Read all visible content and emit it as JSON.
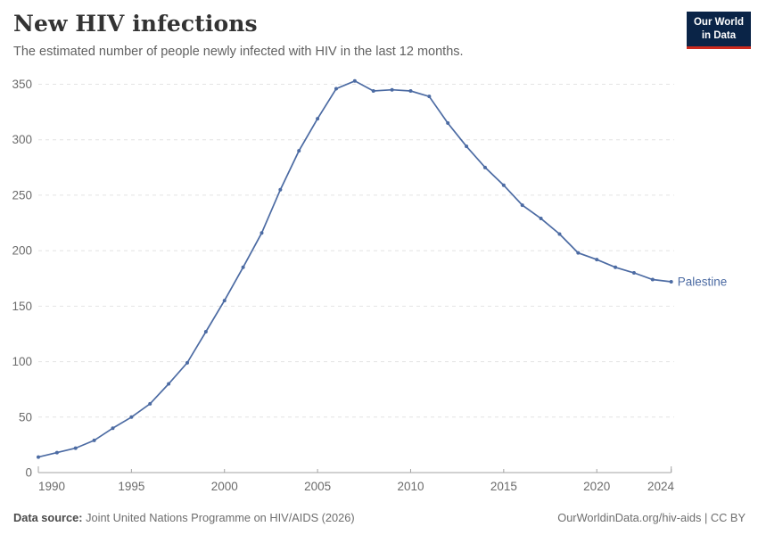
{
  "header": {
    "title": "New HIV infections",
    "subtitle": "The estimated number of people newly infected with HIV in the last 12 months."
  },
  "logo": {
    "line1": "Our World",
    "line2": "in Data"
  },
  "chart_data": {
    "type": "line",
    "title": "New HIV infections",
    "xlabel": "",
    "ylabel": "",
    "xlim": [
      1990,
      2024
    ],
    "ylim": [
      0,
      350
    ],
    "grid": "horizontal-dashed",
    "legend_position": "end-of-line label",
    "x_ticks": [
      "1990",
      "1995",
      "2000",
      "2005",
      "2010",
      "2015",
      "2020",
      "2024"
    ],
    "y_ticks": [
      0,
      50,
      100,
      150,
      200,
      250,
      300,
      350
    ],
    "series": [
      {
        "name": "Palestine",
        "color": "#4C6BA3",
        "x": [
          1990,
          1991,
          1992,
          1993,
          1994,
          1995,
          1996,
          1997,
          1998,
          1999,
          2000,
          2001,
          2002,
          2003,
          2004,
          2005,
          2006,
          2007,
          2008,
          2009,
          2010,
          2011,
          2012,
          2013,
          2014,
          2015,
          2016,
          2017,
          2018,
          2019,
          2020,
          2021,
          2022,
          2023,
          2024
        ],
        "values": [
          14,
          18,
          22,
          29,
          40,
          50,
          62,
          80,
          99,
          127,
          155,
          185,
          216,
          255,
          290,
          319,
          346,
          353,
          344,
          345,
          344,
          339,
          315,
          294,
          275,
          259,
          241,
          229,
          215,
          198,
          192,
          185,
          180,
          174,
          172
        ]
      }
    ]
  },
  "footer": {
    "source_label": "Data source:",
    "source_text": " Joint United Nations Programme on HIV/AIDS (2026)",
    "link_text": "OurWorldinData.org/hiv-aids | CC BY"
  },
  "colors": {
    "line": "#4C6BA3",
    "grid": "#E4E4E4",
    "axis": "#A3A3A3",
    "tick_label": "#6B6B6B"
  }
}
